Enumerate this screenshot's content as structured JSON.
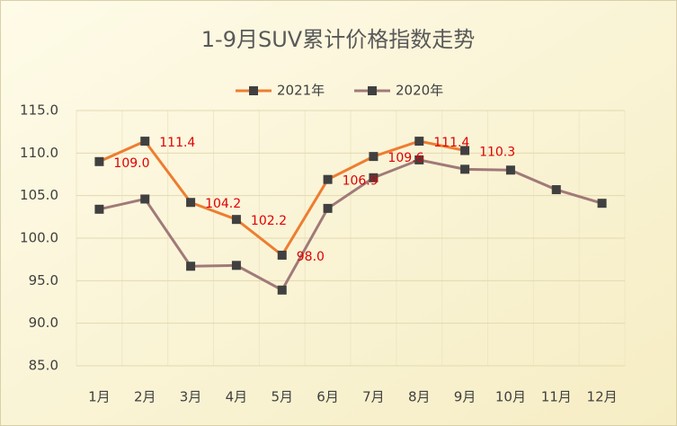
{
  "chart_data": {
    "type": "line",
    "title": "1-9月SUV累计价格指数走势",
    "categories": [
      "1月",
      "2月",
      "3月",
      "4月",
      "5月",
      "6月",
      "7月",
      "8月",
      "9月",
      "10月",
      "11月",
      "12月"
    ],
    "series": [
      {
        "name": "2021年",
        "color": "#ed7d31",
        "values": [
          109.0,
          111.4,
          104.2,
          102.2,
          98.0,
          106.9,
          109.6,
          111.4,
          110.3,
          null,
          null,
          null
        ],
        "value_labels": [
          "109.0",
          "111.4",
          "104.2",
          "102.2",
          "98.0",
          "106.9",
          "109.6",
          "111.4",
          "110.3",
          null,
          null,
          null
        ]
      },
      {
        "name": "2020年",
        "color": "#a07a78",
        "values": [
          103.4,
          104.6,
          96.7,
          96.8,
          93.9,
          103.5,
          107.1,
          109.2,
          108.1,
          108.0,
          105.7,
          104.1
        ]
      }
    ],
    "ylim": [
      85,
      115
    ],
    "yticks": [
      {
        "value": 85,
        "label": "85.0"
      },
      {
        "value": 90,
        "label": "90.0"
      },
      {
        "value": 95,
        "label": "95.0"
      },
      {
        "value": 100,
        "label": "100.0"
      },
      {
        "value": 105,
        "label": "105.0"
      },
      {
        "value": 110,
        "label": "110.0"
      },
      {
        "value": 115,
        "label": "115.0"
      }
    ],
    "grid": true,
    "legend": "top",
    "label_color": "#e00000",
    "marker_color": "#404040"
  }
}
